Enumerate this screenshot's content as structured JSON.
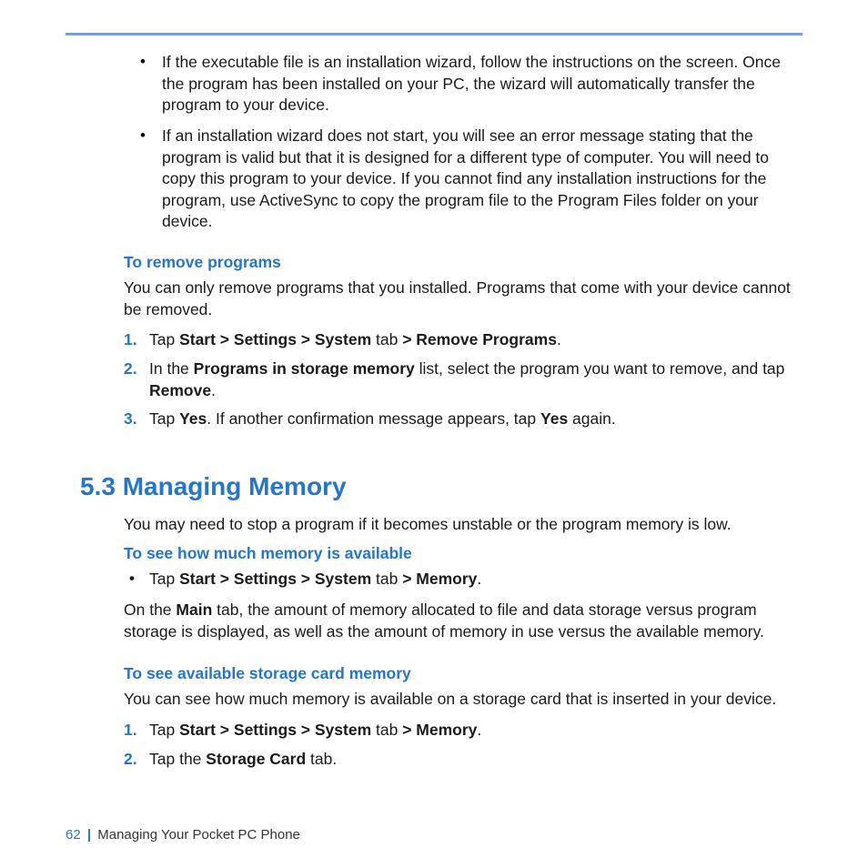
{
  "colors": {
    "accent": "#2576c6",
    "rule": "#7a9fd6",
    "text": "#1a1a1a",
    "background": "#ffffff"
  },
  "typography": {
    "body_fontsize_pt": 13,
    "heading_fontsize_pt": 21,
    "font_family": "Arial"
  },
  "top_bullets": [
    "If the executable file is an installation wizard, follow the instructions on the screen. Once the program has been installed on your PC, the wizard will automatically transfer the program to your device.",
    "If an installation wizard does not start, you will see an error message stating that the program is valid but that it is designed for a different type of computer. You will need to copy this program to your device. If you cannot find any installation instructions for the program, use ActiveSync to copy the program file to the Program Files folder on your device."
  ],
  "remove_section": {
    "heading": "To remove programs",
    "intro": "You can only remove programs that you installed. Programs that come with your device cannot be removed.",
    "steps": [
      {
        "num": "1.",
        "html": "Tap <b>Start > Settings > System</b> tab <b>> Remove Programs</b>."
      },
      {
        "num": "2.",
        "html": "In the <b>Programs in storage memory</b> list, select the program you want to remove, and tap <b>Remove</b>."
      },
      {
        "num": "3.",
        "html": "Tap <b>Yes</b>. If another confirmation message appears, tap <b>Yes</b> again."
      }
    ]
  },
  "memory_section": {
    "heading": "5.3  Managing Memory",
    "intro": "You may need to stop a program if it becomes unstable or the program memory is low.",
    "sub1": {
      "heading": "To see how much memory is available",
      "bullet_html": "Tap <b>Start > Settings > System</b> tab <b>> Memory</b>.",
      "body_html": "On the <b>Main</b> tab, the amount of memory allocated to file and data storage versus program storage is displayed, as well as the amount of memory in use versus the available memory."
    },
    "sub2": {
      "heading": "To see available storage card memory",
      "intro": "You can see how much memory is available on a storage card that is inserted in your device.",
      "steps": [
        {
          "num": "1.",
          "html": "Tap <b>Start > Settings > System</b> tab <b>> Memory</b>."
        },
        {
          "num": "2.",
          "html": "Tap the <b>Storage Card</b> tab."
        }
      ]
    }
  },
  "footer": {
    "page_number": "62",
    "separator": "|",
    "chapter": "Managing Your Pocket PC Phone"
  }
}
